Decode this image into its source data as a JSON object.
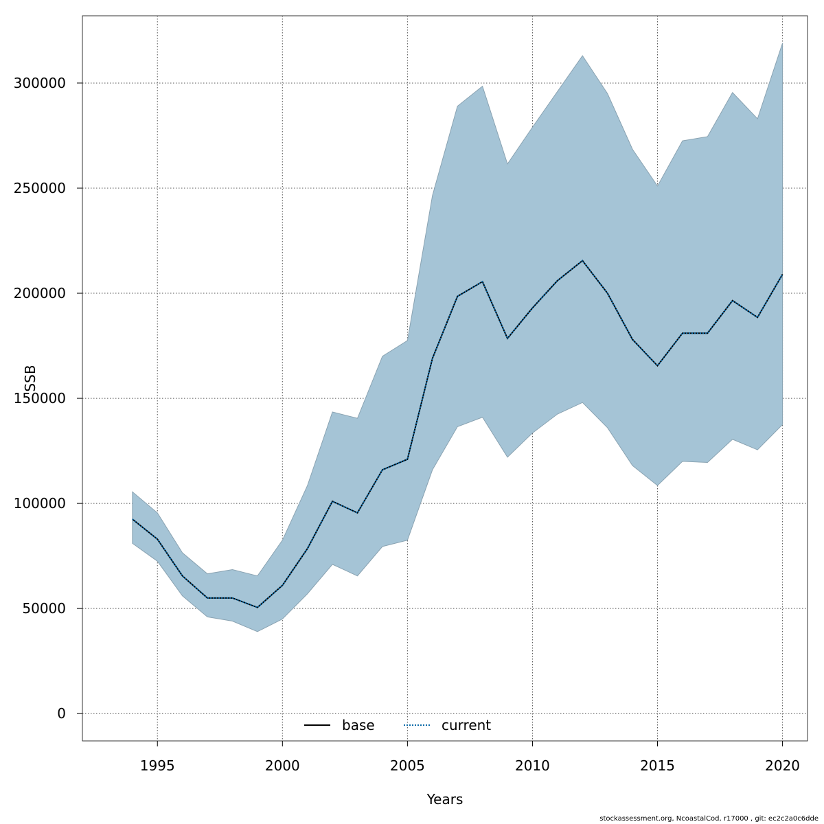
{
  "chart_data": {
    "type": "area",
    "xlabel": "Years",
    "ylabel": "SSB",
    "xlim": [
      1992,
      2021
    ],
    "ylim": [
      -13000,
      332000
    ],
    "x_ticks": [
      1995,
      2000,
      2005,
      2010,
      2015,
      2020
    ],
    "y_ticks": [
      0,
      50000,
      100000,
      150000,
      200000,
      250000,
      300000
    ],
    "grid": true,
    "legend_position": "bottom-center",
    "x": [
      1994,
      1995,
      1996,
      1997,
      1998,
      1999,
      2000,
      2001,
      2002,
      2003,
      2004,
      2005,
      2006,
      2007,
      2008,
      2009,
      2010,
      2011,
      2012,
      2013,
      2014,
      2015,
      2016,
      2017,
      2018,
      2019,
      2020
    ],
    "series": [
      {
        "name": "base",
        "line_style": "solid",
        "color": "#000000",
        "values": [
          92500,
          83000,
          65500,
          55000,
          55000,
          50500,
          61000,
          78500,
          101000,
          95500,
          116000,
          121000,
          169000,
          198500,
          205500,
          178500,
          193000,
          206000,
          215500,
          200000,
          178000,
          165500,
          181000,
          181000,
          196500,
          188500,
          209000
        ]
      },
      {
        "name": "current",
        "line_style": "dotted",
        "color": "#0a6aa8",
        "values": [
          92500,
          83000,
          65500,
          55000,
          55000,
          50500,
          61000,
          78500,
          101000,
          95500,
          116000,
          121000,
          169000,
          198500,
          205500,
          178500,
          193000,
          206000,
          215500,
          200000,
          178000,
          165500,
          181000,
          181000,
          196500,
          188500,
          209000
        ]
      }
    ],
    "confidence_band": {
      "color": "#a5c4d6",
      "upper": [
        105500,
        95500,
        76500,
        66500,
        68500,
        65500,
        82500,
        108500,
        143500,
        140500,
        170000,
        177500,
        246500,
        289000,
        298500,
        261500,
        279000,
        296000,
        313000,
        295000,
        268500,
        251000,
        272500,
        274500,
        295500,
        283000,
        319000
      ],
      "lower": [
        81000,
        72500,
        56000,
        46000,
        44000,
        39000,
        45000,
        57000,
        71000,
        65500,
        79500,
        82500,
        116000,
        136500,
        141000,
        122000,
        133500,
        142500,
        148000,
        136000,
        118000,
        108500,
        120000,
        119500,
        130500,
        125500,
        137500
      ]
    }
  },
  "footer": {
    "note": "stockassessment.org, NcoastalCod, r17000 , git: ec2c2a0c6dde"
  }
}
